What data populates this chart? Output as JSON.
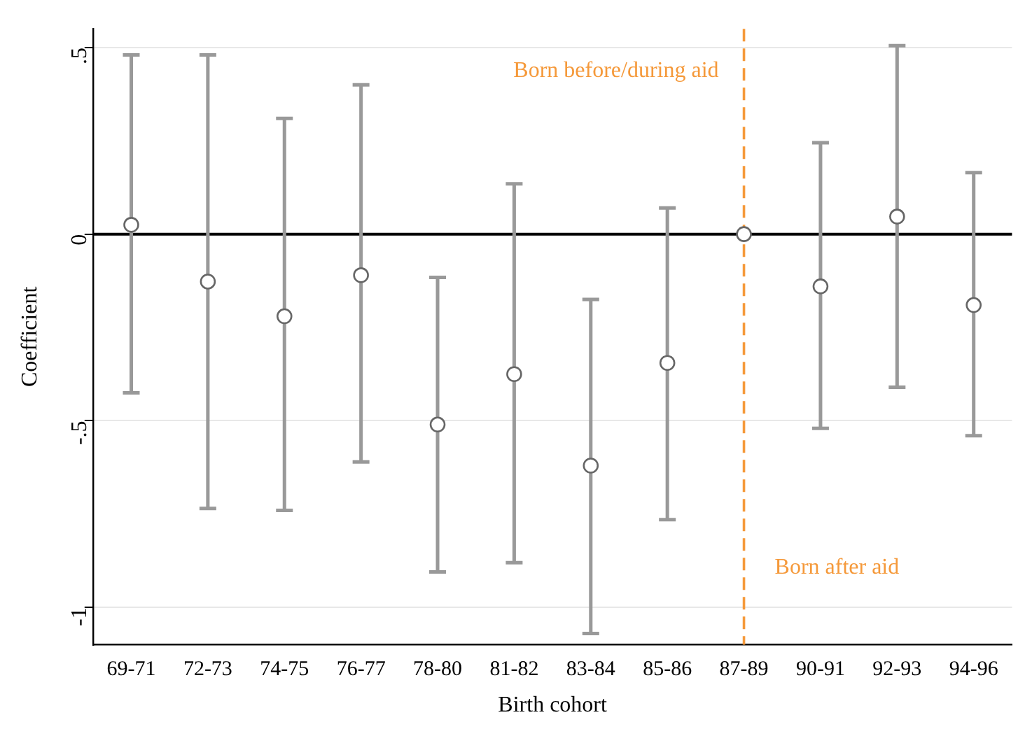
{
  "chart_data": {
    "type": "scatter",
    "xlabel": "Birth cohort",
    "ylabel": "Coefficient",
    "categories": [
      "69-71",
      "72-73",
      "74-75",
      "76-77",
      "78-80",
      "81-82",
      "83-84",
      "85-86",
      "87-89",
      "90-91",
      "92-93",
      "94-96"
    ],
    "series": [
      {
        "color": "#666666",
        "values": [
          0.025,
          -0.127,
          -0.22,
          -0.11,
          -0.51,
          -0.375,
          -0.62,
          -0.345,
          0,
          -0.14,
          0.047,
          -0.19
        ],
        "errors": [
          [
            -0.425,
            0.48
          ],
          [
            -0.735,
            0.48
          ],
          [
            -0.74,
            0.31
          ],
          [
            -0.61,
            0.4
          ],
          [
            -0.905,
            -0.116
          ],
          [
            -0.88,
            0.135
          ],
          [
            -1.07,
            -0.175
          ],
          [
            -0.765,
            0.07
          ],
          null,
          [
            -0.52,
            0.245
          ],
          [
            -0.41,
            0.505
          ],
          [
            -0.54,
            0.165
          ]
        ]
      }
    ],
    "ylim": [
      -1.1,
      0.55
    ],
    "yticks": [
      {
        "value": 0.5,
        "label": ".5"
      },
      {
        "value": 0,
        "label": "0"
      },
      {
        "value": -0.5,
        "label": "-.5"
      },
      {
        "value": -1,
        "label": "-1"
      }
    ],
    "grid": "y",
    "marker": "circle",
    "ref_lines": [
      {
        "axis": "y",
        "value": 0,
        "color": "#000000"
      },
      {
        "axis": "x",
        "value": "87-89",
        "color": "#f5993a",
        "line_style": "dashed"
      }
    ],
    "annotations": [
      "Born before/during aid",
      "Born after aid"
    ]
  }
}
